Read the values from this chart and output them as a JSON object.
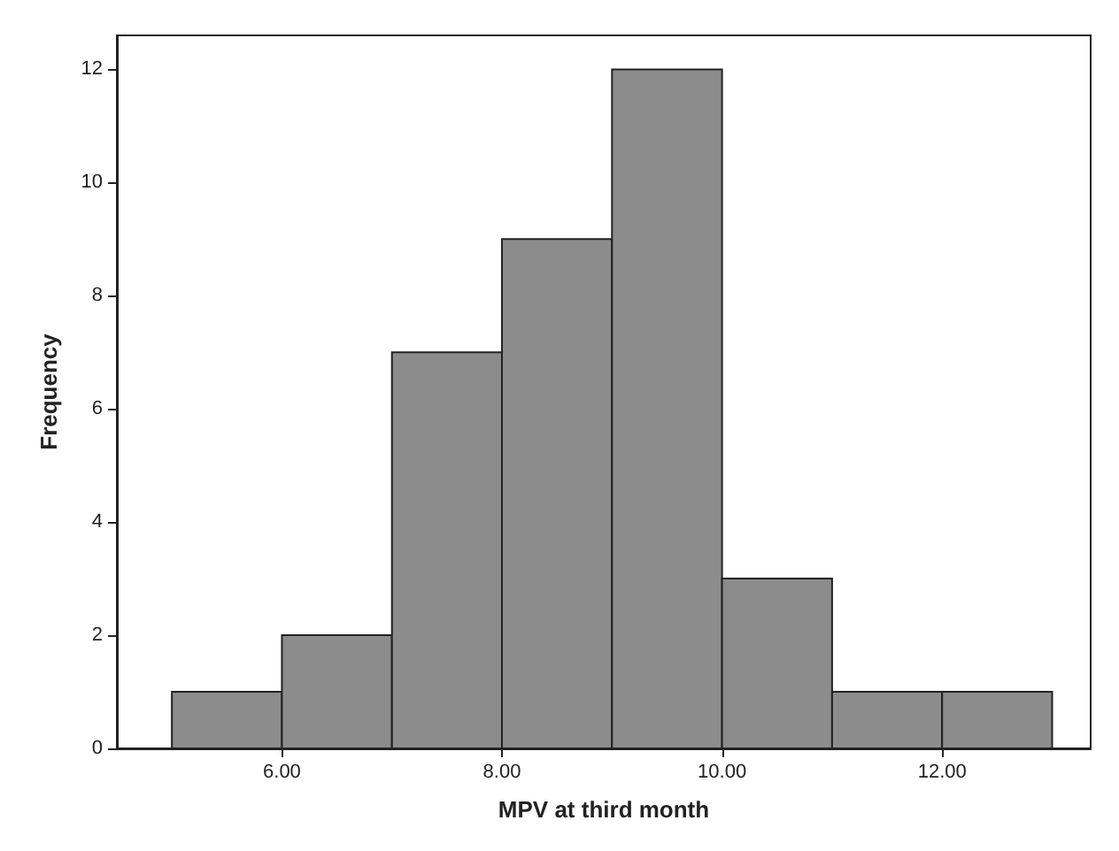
{
  "chart_data": {
    "type": "histogram",
    "xlabel": "MPV at third month",
    "ylabel": "Frequency",
    "bins": [
      5,
      6,
      7,
      8,
      9,
      10,
      11,
      12,
      13
    ],
    "values": [
      1,
      2,
      7,
      9,
      12,
      3,
      1,
      1
    ],
    "color": "#8c8c8c",
    "xlim": [
      4.5,
      13.35
    ],
    "ylim": [
      0,
      12.6
    ],
    "xticks": [
      {
        "value": 6,
        "label": "6.00"
      },
      {
        "value": 8,
        "label": "8.00"
      },
      {
        "value": 10,
        "label": "10.00"
      },
      {
        "value": 12,
        "label": "12.00"
      }
    ],
    "yticks": [
      0,
      2,
      4,
      6,
      8,
      10,
      12
    ],
    "grid": false
  }
}
